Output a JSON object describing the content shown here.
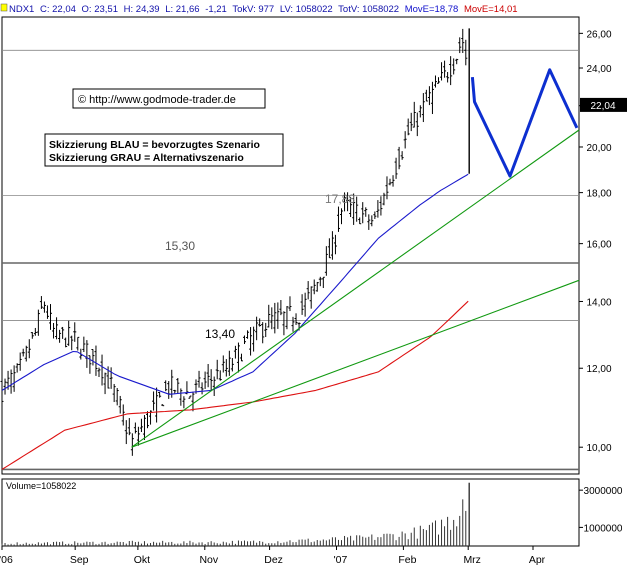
{
  "header": {
    "symbol": "NDX1",
    "close": "C: 22,04",
    "open": "O: 23,51",
    "high": "H: 24,39",
    "low": "L: 21,66",
    "change": "-1,21",
    "tokv": "TokV: 977",
    "lv": "LV: 1058022",
    "totv": "TotV: 1058022",
    "move_blue": "MovE=18,78",
    "move_red": "MovE=14,01",
    "dot_color": "#ffff00"
  },
  "annotations": {
    "copyright": "© http://www.godmode-trader.de",
    "legend_blue": "Skizzierung BLAU = bevorzugtes Szenario",
    "legend_gray": "Skizzierung GRAU = Alternativszenario",
    "level_1788": "17,88",
    "level_1530": "15,30",
    "level_1340": "13,40",
    "last_price": "22,04"
  },
  "volume_panel": {
    "label": "Volume=1058022",
    "ticks": [
      "3000000",
      "1000000"
    ]
  },
  "colors": {
    "price_bars": "#000000",
    "ma_blue": "#1a1acc",
    "ma_red": "#dd1111",
    "trendline": "#119911",
    "scenario_blue": "#0d2fd0",
    "last_price_badge": "#000000",
    "header_blue": "#1111aa",
    "header_red": "#cc0000"
  },
  "chart_data": {
    "type": "ohlc",
    "y_scale": "log",
    "ylim": [
      9.4,
      27
    ],
    "y_ticks": [
      "10,00",
      "12,00",
      "14,00",
      "16,00",
      "18,00",
      "20,00",
      "22,00",
      "24,00",
      "26,00"
    ],
    "y_tick_values": [
      10,
      12,
      14,
      16,
      18,
      20,
      22,
      24,
      26
    ],
    "x_ticks": [
      "'06",
      "Sep",
      "Okt",
      "Nov",
      "Dez",
      "'07",
      "Feb",
      "Mrz",
      "Apr"
    ],
    "x_tick_days": [
      0,
      35,
      65,
      97,
      128,
      160,
      192,
      223,
      254
    ],
    "x_range_days": [
      0,
      276
    ],
    "horizontal_levels": [
      9.5,
      13.4,
      15.3,
      17.88,
      25
    ],
    "trading_day_step": 1.45,
    "price_keys": [
      [
        0,
        11.4
      ],
      [
        8,
        11.9
      ],
      [
        16,
        13.0
      ],
      [
        20,
        14.0
      ],
      [
        25,
        13.0
      ],
      [
        35,
        12.8
      ],
      [
        48,
        12.0
      ],
      [
        55,
        11.2
      ],
      [
        62,
        10.1
      ],
      [
        70,
        10.7
      ],
      [
        80,
        11.5
      ],
      [
        90,
        11.3
      ],
      [
        100,
        11.7
      ],
      [
        108,
        12.0
      ],
      [
        118,
        12.8
      ],
      [
        128,
        13.4
      ],
      [
        142,
        13.6
      ],
      [
        150,
        14.5
      ],
      [
        158,
        15.8
      ],
      [
        163,
        17.5
      ],
      [
        170,
        17.2
      ],
      [
        178,
        16.8
      ],
      [
        186,
        18.6
      ],
      [
        195,
        20.8
      ],
      [
        205,
        22.5
      ],
      [
        212,
        23.6
      ],
      [
        218,
        24.8
      ],
      [
        220,
        25.8
      ],
      [
        222,
        24.5
      ],
      [
        223,
        22.0
      ]
    ],
    "ma_blue": [
      [
        0,
        11.4
      ],
      [
        20,
        12.1
      ],
      [
        35,
        12.5
      ],
      [
        55,
        11.8
      ],
      [
        80,
        11.3
      ],
      [
        100,
        11.4
      ],
      [
        120,
        11.9
      ],
      [
        140,
        13.0
      ],
      [
        160,
        14.5
      ],
      [
        180,
        16.2
      ],
      [
        200,
        17.5
      ],
      [
        210,
        18.1
      ],
      [
        223,
        18.78
      ]
    ],
    "ma_red": [
      [
        0,
        9.5
      ],
      [
        30,
        10.4
      ],
      [
        60,
        10.8
      ],
      [
        90,
        10.9
      ],
      [
        120,
        11.1
      ],
      [
        150,
        11.4
      ],
      [
        180,
        11.9
      ],
      [
        205,
        12.9
      ],
      [
        215,
        13.5
      ],
      [
        223,
        14.01
      ]
    ],
    "trend_up_steep": [
      [
        62,
        10.0
      ],
      [
        276,
        20.8
      ]
    ],
    "trend_up_flat": [
      [
        62,
        10.0
      ],
      [
        276,
        14.7
      ]
    ],
    "scenario_blue": [
      [
        225,
        23.5
      ],
      [
        226,
        22.2
      ],
      [
        243,
        18.7
      ],
      [
        262,
        23.9
      ],
      [
        275,
        20.9
      ]
    ],
    "volume_ticks": [
      3000000,
      1000000
    ],
    "volume_max": 3600000,
    "volume_series": [
      [
        0,
        150000
      ],
      [
        30,
        180000
      ],
      [
        60,
        200000
      ],
      [
        90,
        200000
      ],
      [
        120,
        230000
      ],
      [
        150,
        320000
      ],
      [
        175,
        450000
      ],
      [
        195,
        700000
      ],
      [
        205,
        900000
      ],
      [
        212,
        1300000
      ],
      [
        216,
        1600000
      ],
      [
        219,
        2100000
      ],
      [
        221,
        3400000
      ],
      [
        223,
        1058022
      ]
    ]
  }
}
